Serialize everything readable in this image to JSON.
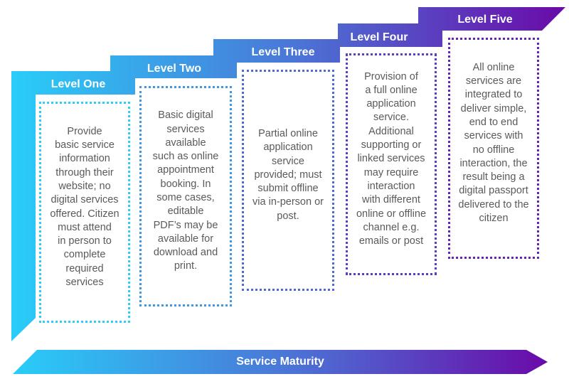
{
  "colors": {
    "start": "#29cdf8",
    "mid": "#4a78d8",
    "end": "#6a0aa8",
    "text": "#5a5a5a"
  },
  "levels": [
    {
      "title": "Level One",
      "text": "Provide\nbasic service\ninformation\nthrough their\nwebsite; no\ndigital services\noffered. Citizen\nmust attend\nin person to\ncomplete\nrequired\nservices"
    },
    {
      "title": "Level Two",
      "text": "Basic digital\nservices\navailable\nsuch as online\nappointment\nbooking. In\nsome cases,\neditable\nPDF’s may be\navailable for\ndownload and\nprint."
    },
    {
      "title": "Level Three",
      "text": "Partial online\napplication\nservice\nprovided; must\nsubmit offline\nvia in-person or\npost."
    },
    {
      "title": "Level Four",
      "text": "Provision of\na full online\napplication\nservice.\nAdditional\nsupporting or\nlinked services\nmay require\ninteraction\nwith different\nonline or offline\nchannel e.g.\nemails or post"
    },
    {
      "title": "Level Five",
      "text": "All online\nservices are\nintegrated to\ndeliver simple,\nend to end\nservices with\nno offline\ninteraction, the\nresult being a\ndigital passport\ndelivered to the\ncitizen"
    }
  ],
  "axis": {
    "label": "Service Maturity"
  }
}
